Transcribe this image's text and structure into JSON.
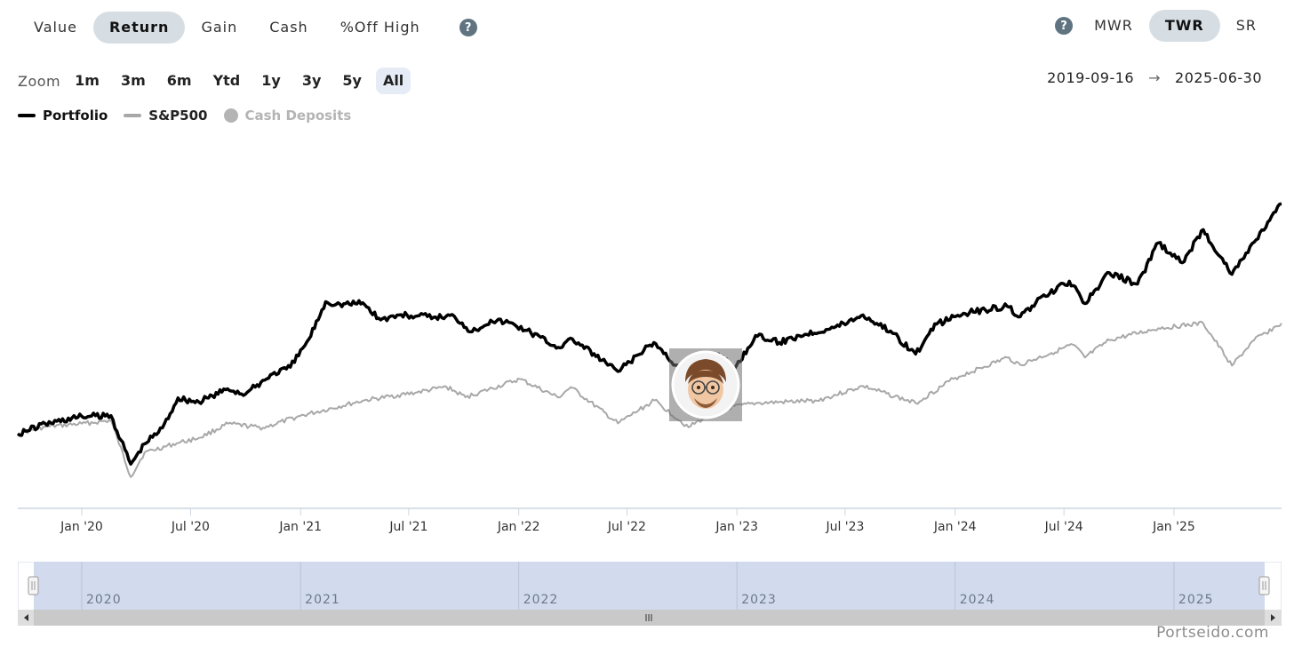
{
  "metric_tabs": [
    {
      "label": "Value",
      "active": false
    },
    {
      "label": "Return",
      "active": true
    },
    {
      "label": "Gain",
      "active": false
    },
    {
      "label": "Cash",
      "active": false
    },
    {
      "label": "%Off High",
      "active": false
    }
  ],
  "help_icon_text": "?",
  "method_tabs": [
    {
      "label": "MWR",
      "active": false
    },
    {
      "label": "TWR",
      "active": true
    },
    {
      "label": "SR",
      "active": false
    }
  ],
  "zoom": {
    "label": "Zoom",
    "options": [
      "1m",
      "3m",
      "6m",
      "Ytd",
      "1y",
      "3y",
      "5y",
      "All"
    ],
    "active": "All"
  },
  "date_range": {
    "start": "2019-09-16",
    "arrow": "→",
    "end": "2025-06-30"
  },
  "legend": [
    {
      "name": "Portfolio",
      "color": "#000000",
      "kind": "line",
      "visible": true
    },
    {
      "name": "S&P500",
      "color": "#a8a8a8",
      "kind": "line",
      "visible": true
    },
    {
      "name": "Cash Deposits",
      "color": "#b4b4b4",
      "kind": "dot",
      "visible": false
    }
  ],
  "chart_data": {
    "type": "line",
    "x_ticks": [
      "Jan '20",
      "Jul '20",
      "Jan '21",
      "Jul '21",
      "Jan '22",
      "Jul '22",
      "Jan '23",
      "Jul '23",
      "Jan '24",
      "Jul '24",
      "Jan '25"
    ],
    "x_range": [
      "2019-09-16",
      "2025-06-30"
    ],
    "y_range_relative": [
      0,
      1
    ],
    "series": [
      {
        "name": "Portfolio",
        "color": "#000000",
        "points": [
          [
            "2019-09-16",
            0.214
          ],
          [
            "2019-11-01",
            0.243
          ],
          [
            "2020-01-01",
            0.264
          ],
          [
            "2020-02-19",
            0.266
          ],
          [
            "2020-03-23",
            0.127
          ],
          [
            "2020-04-15",
            0.185
          ],
          [
            "2020-05-15",
            0.231
          ],
          [
            "2020-06-10",
            0.317
          ],
          [
            "2020-07-15",
            0.305
          ],
          [
            "2020-09-01",
            0.343
          ],
          [
            "2020-10-01",
            0.328
          ],
          [
            "2020-11-15",
            0.386
          ],
          [
            "2020-12-15",
            0.405
          ],
          [
            "2021-01-15",
            0.486
          ],
          [
            "2021-02-12",
            0.593
          ],
          [
            "2021-03-08",
            0.586
          ],
          [
            "2021-04-15",
            0.59
          ],
          [
            "2021-05-15",
            0.541
          ],
          [
            "2021-06-15",
            0.555
          ],
          [
            "2021-07-15",
            0.552
          ],
          [
            "2021-08-15",
            0.549
          ],
          [
            "2021-09-15",
            0.552
          ],
          [
            "2021-10-15",
            0.507
          ],
          [
            "2021-11-15",
            0.54
          ],
          [
            "2021-12-15",
            0.534
          ],
          [
            "2022-01-15",
            0.511
          ],
          [
            "2022-03-08",
            0.462
          ],
          [
            "2022-04-01",
            0.486
          ],
          [
            "2022-05-20",
            0.425
          ],
          [
            "2022-06-16",
            0.393
          ],
          [
            "2022-08-15",
            0.476
          ],
          [
            "2022-09-30",
            0.396
          ],
          [
            "2022-10-20",
            0.405
          ],
          [
            "2022-12-01",
            0.443
          ],
          [
            "2022-12-28",
            0.4
          ],
          [
            "2023-02-01",
            0.496
          ],
          [
            "2023-03-13",
            0.476
          ],
          [
            "2023-04-15",
            0.496
          ],
          [
            "2023-06-15",
            0.521
          ],
          [
            "2023-07-31",
            0.555
          ],
          [
            "2023-09-15",
            0.509
          ],
          [
            "2023-10-27",
            0.443
          ],
          [
            "2023-12-01",
            0.529
          ],
          [
            "2024-01-15",
            0.56
          ],
          [
            "2024-03-28",
            0.58
          ],
          [
            "2024-04-19",
            0.55
          ],
          [
            "2024-05-15",
            0.59
          ],
          [
            "2024-07-10",
            0.652
          ],
          [
            "2024-08-05",
            0.588
          ],
          [
            "2024-09-15",
            0.676
          ],
          [
            "2024-11-01",
            0.644
          ],
          [
            "2024-12-06",
            0.762
          ],
          [
            "2025-01-15",
            0.705
          ],
          [
            "2025-02-19",
            0.8
          ],
          [
            "2025-04-08",
            0.672
          ],
          [
            "2025-05-15",
            0.764
          ],
          [
            "2025-06-30",
            0.874
          ]
        ]
      },
      {
        "name": "S&P500",
        "color": "#a8a8a8",
        "points": [
          [
            "2019-09-16",
            0.214
          ],
          [
            "2019-11-01",
            0.234
          ],
          [
            "2020-01-01",
            0.243
          ],
          [
            "2020-02-19",
            0.252
          ],
          [
            "2020-03-23",
            0.09
          ],
          [
            "2020-04-15",
            0.16
          ],
          [
            "2020-06-08",
            0.187
          ],
          [
            "2020-07-15",
            0.202
          ],
          [
            "2020-09-02",
            0.243
          ],
          [
            "2020-10-30",
            0.231
          ],
          [
            "2020-12-31",
            0.265
          ],
          [
            "2021-04-15",
            0.309
          ],
          [
            "2021-07-15",
            0.333
          ],
          [
            "2021-09-02",
            0.349
          ],
          [
            "2021-10-04",
            0.319
          ],
          [
            "2022-01-03",
            0.371
          ],
          [
            "2022-03-08",
            0.318
          ],
          [
            "2022-03-29",
            0.348
          ],
          [
            "2022-06-16",
            0.244
          ],
          [
            "2022-08-16",
            0.31
          ],
          [
            "2022-10-12",
            0.233
          ],
          [
            "2022-12-01",
            0.283
          ],
          [
            "2023-02-02",
            0.302
          ],
          [
            "2023-05-15",
            0.309
          ],
          [
            "2023-07-31",
            0.351
          ],
          [
            "2023-10-27",
            0.302
          ],
          [
            "2023-12-29",
            0.372
          ],
          [
            "2024-03-28",
            0.433
          ],
          [
            "2024-04-19",
            0.412
          ],
          [
            "2024-07-16",
            0.47
          ],
          [
            "2024-08-05",
            0.433
          ],
          [
            "2024-09-15",
            0.483
          ],
          [
            "2024-12-06",
            0.517
          ],
          [
            "2025-02-19",
            0.531
          ],
          [
            "2025-04-08",
            0.41
          ],
          [
            "2025-05-15",
            0.483
          ],
          [
            "2025-06-30",
            0.531
          ]
        ]
      }
    ]
  },
  "navigator": {
    "years": [
      "2020",
      "2021",
      "2022",
      "2023",
      "2024",
      "2025"
    ]
  },
  "brand": "Portseido.com"
}
